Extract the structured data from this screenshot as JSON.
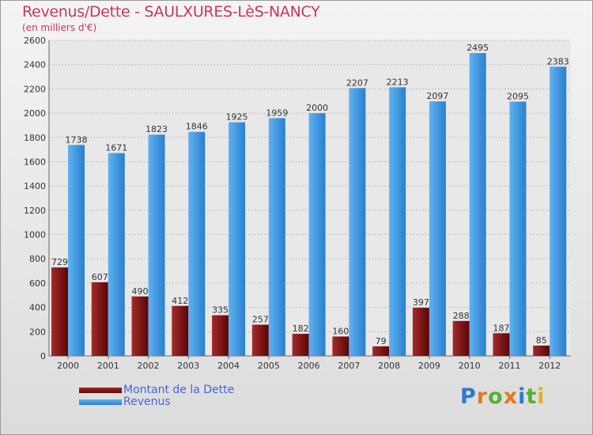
{
  "chart_data": {
    "type": "bar",
    "title": "Revenus/Dette - SAULXURES-LèS-NANCY",
    "subtitle": "(en milliers d'€)",
    "categories": [
      "2000",
      "2001",
      "2002",
      "2003",
      "2004",
      "2005",
      "2006",
      "2007",
      "2008",
      "2009",
      "2010",
      "2011",
      "2012"
    ],
    "series": [
      {
        "name": "Montant de la Dette",
        "color": "#7a0e0e",
        "values": [
          729,
          607,
          490,
          412,
          335,
          257,
          182,
          160,
          79,
          397,
          288,
          187,
          85
        ]
      },
      {
        "name": "Revenus",
        "color": "#3a95df",
        "values": [
          1738,
          1671,
          1823,
          1846,
          1925,
          1959,
          2000,
          2207,
          2213,
          2097,
          2495,
          2095,
          2383
        ]
      }
    ],
    "ylim": [
      0,
      2600
    ],
    "yticks": [
      0,
      200,
      400,
      600,
      800,
      1000,
      1200,
      1400,
      1600,
      1800,
      2000,
      2200,
      2400,
      2600
    ],
    "grid": true,
    "legend": "bottom-left"
  },
  "logo": {
    "letters": [
      "P",
      "r",
      "o",
      "x",
      "i",
      "t",
      "i"
    ],
    "colors": [
      "#2a7ad0",
      "#e07a1f",
      "#56b030",
      "#e07a1f",
      "#2a7ad0",
      "#56b030",
      "#e0b020"
    ]
  }
}
